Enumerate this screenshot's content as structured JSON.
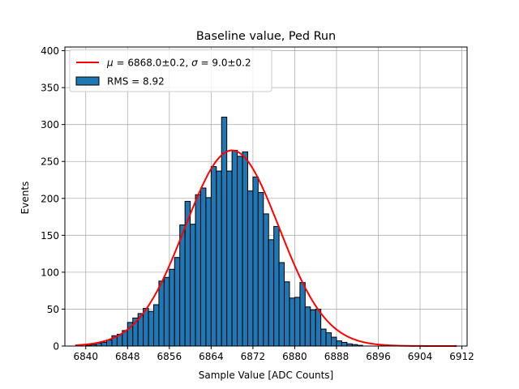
{
  "chart_data": {
    "type": "bar",
    "title": "Baseline value, Ped Run",
    "xlabel": "Sample Value [ADC Counts]",
    "ylabel": "Events",
    "xlim": [
      6836,
      6913
    ],
    "ylim": [
      0,
      405
    ],
    "xticks": [
      6840,
      6848,
      6856,
      6864,
      6872,
      6880,
      6888,
      6896,
      6904,
      6912
    ],
    "yticks": [
      0,
      50,
      100,
      150,
      200,
      250,
      300,
      350,
      400
    ],
    "grid": true,
    "legend_position": "top-left",
    "bin_width": 1,
    "bins": {
      "x_start": [
        6840,
        6841,
        6842,
        6843,
        6844,
        6845,
        6846,
        6847,
        6848,
        6849,
        6850,
        6851,
        6852,
        6853,
        6854,
        6855,
        6856,
        6857,
        6858,
        6859,
        6860,
        6861,
        6862,
        6863,
        6864,
        6865,
        6866,
        6867,
        6868,
        6869,
        6870,
        6871,
        6872,
        6873,
        6874,
        6875,
        6876,
        6877,
        6878,
        6879,
        6880,
        6881,
        6882,
        6883,
        6884,
        6885,
        6886,
        6887,
        6888,
        6889,
        6890,
        6891,
        6892
      ],
      "counts": [
        1,
        2,
        4,
        5,
        8,
        14,
        16,
        21,
        32,
        38,
        44,
        51,
        47,
        56,
        88,
        93,
        104,
        120,
        164,
        196,
        165,
        205,
        214,
        201,
        243,
        237,
        310,
        237,
        265,
        257,
        263,
        210,
        229,
        208,
        179,
        144,
        162,
        113,
        87,
        65,
        66,
        86,
        53,
        49,
        50,
        23,
        18,
        12,
        7,
        5,
        3,
        2,
        1
      ]
    },
    "series": [
      {
        "name": "RMS = 8.92",
        "kind": "histogram",
        "color": "#1f77b4",
        "edgecolor": "#000000"
      },
      {
        "name": "$\\mu=6868.0\\pm0.2$, $\\sigma=9.0\\pm0.2$",
        "kind": "gaussian_fit",
        "color": "#ff0000",
        "mu": 6868.0,
        "sigma": 9.0,
        "amplitude": 265,
        "x_range": [
          6838,
          6911
        ]
      }
    ],
    "legend": {
      "fit_prefix_mu": "μ",
      "fit_mu_text": " = 6868.0±0.2, ",
      "fit_prefix_sigma": "σ",
      "fit_sigma_text": " = 9.0±0.2",
      "hist_label": "RMS = 8.92"
    }
  }
}
